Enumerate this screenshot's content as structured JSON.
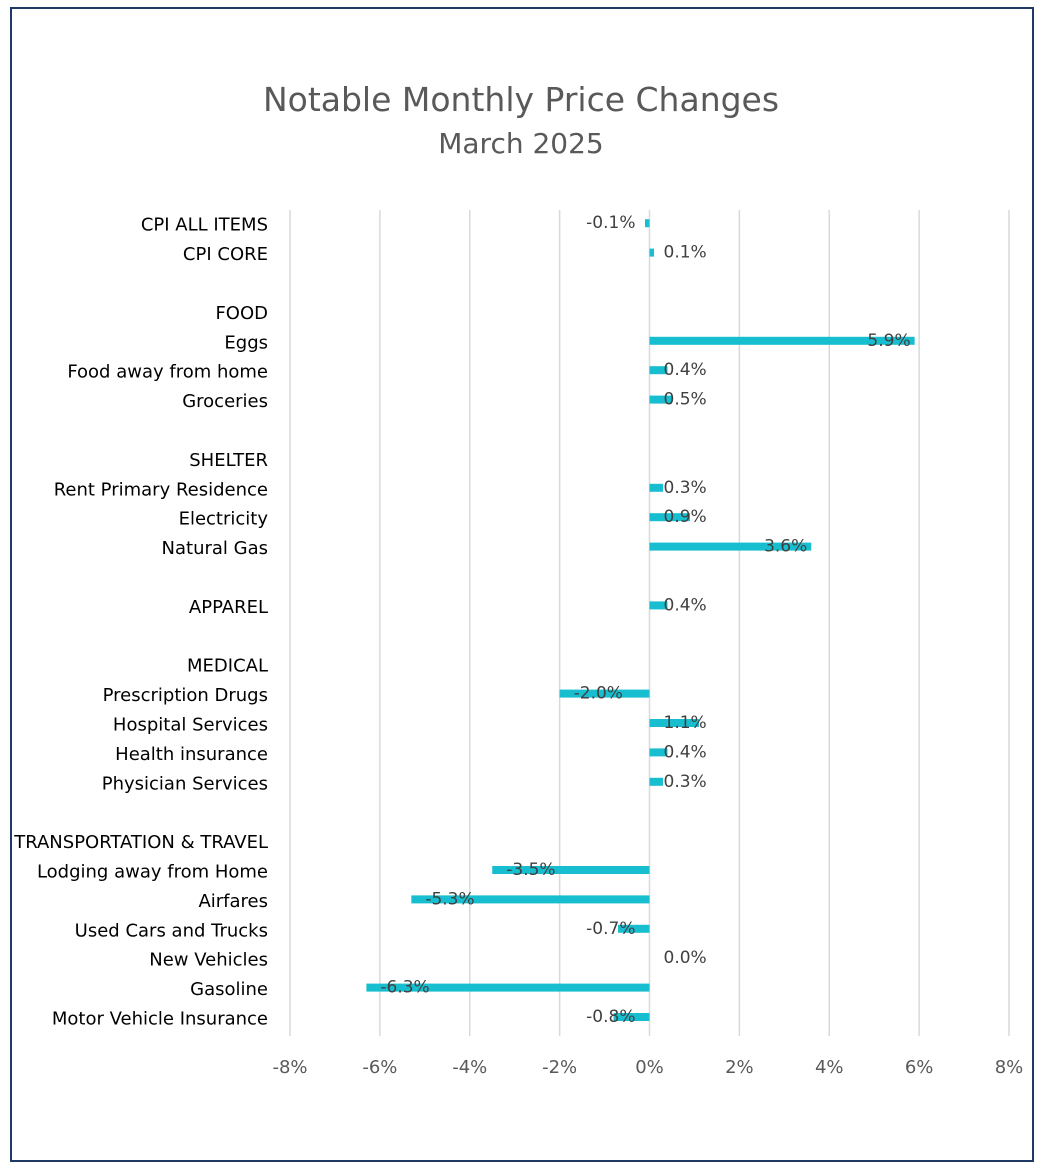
{
  "chart_data": {
    "type": "bar",
    "orientation": "horizontal",
    "title": "Notable Monthly Price Changes",
    "subtitle": "March 2025",
    "categories": [
      "CPI ALL ITEMS",
      "CPI CORE",
      "",
      "FOOD",
      "Eggs",
      "Food away from home",
      "Groceries",
      "",
      "SHELTER",
      "Rent Primary Residence",
      "Electricity",
      "Natural Gas",
      "",
      "APPAREL",
      "",
      "MEDICAL",
      "Prescription Drugs",
      "Hospital Services",
      "Health insurance",
      "Physician Services",
      "",
      "TRANSPORTATION & TRAVEL",
      "Lodging away from Home",
      "Airfares",
      "Used Cars and Trucks",
      "New Vehicles",
      "Gasoline",
      "Motor Vehicle Insurance"
    ],
    "values": [
      -0.1,
      0.1,
      null,
      null,
      5.9,
      0.4,
      0.5,
      null,
      null,
      0.3,
      0.9,
      3.6,
      null,
      0.4,
      null,
      null,
      -2.0,
      1.1,
      0.4,
      0.3,
      null,
      null,
      -3.5,
      -5.3,
      -0.7,
      0.0,
      -6.3,
      -0.8
    ],
    "data_labels": [
      "-0.1%",
      "0.1%",
      "",
      "",
      "5.9%",
      "0.4%",
      "0.5%",
      "",
      "",
      "0.3%",
      "0.9%",
      "3.6%",
      "",
      "0.4%",
      "",
      "",
      "-2.0%",
      "1.1%",
      "0.4%",
      "0.3%",
      "",
      "",
      "-3.5%",
      "-5.3%",
      "-0.7%",
      "0.0%",
      "-6.3%",
      "-0.8%"
    ],
    "xlim": [
      -8,
      8
    ],
    "xticks": [
      -8,
      -6,
      -4,
      -2,
      0,
      2,
      4,
      6,
      8
    ],
    "xtick_labels": [
      "-8%",
      "-6%",
      "-4%",
      "-2%",
      "0%",
      "2%",
      "4%",
      "6%",
      "8%"
    ],
    "xlabel": "",
    "ylabel": "",
    "grid": true,
    "bar_color": "#17becf",
    "gridline_color": "#d9d9d9"
  }
}
